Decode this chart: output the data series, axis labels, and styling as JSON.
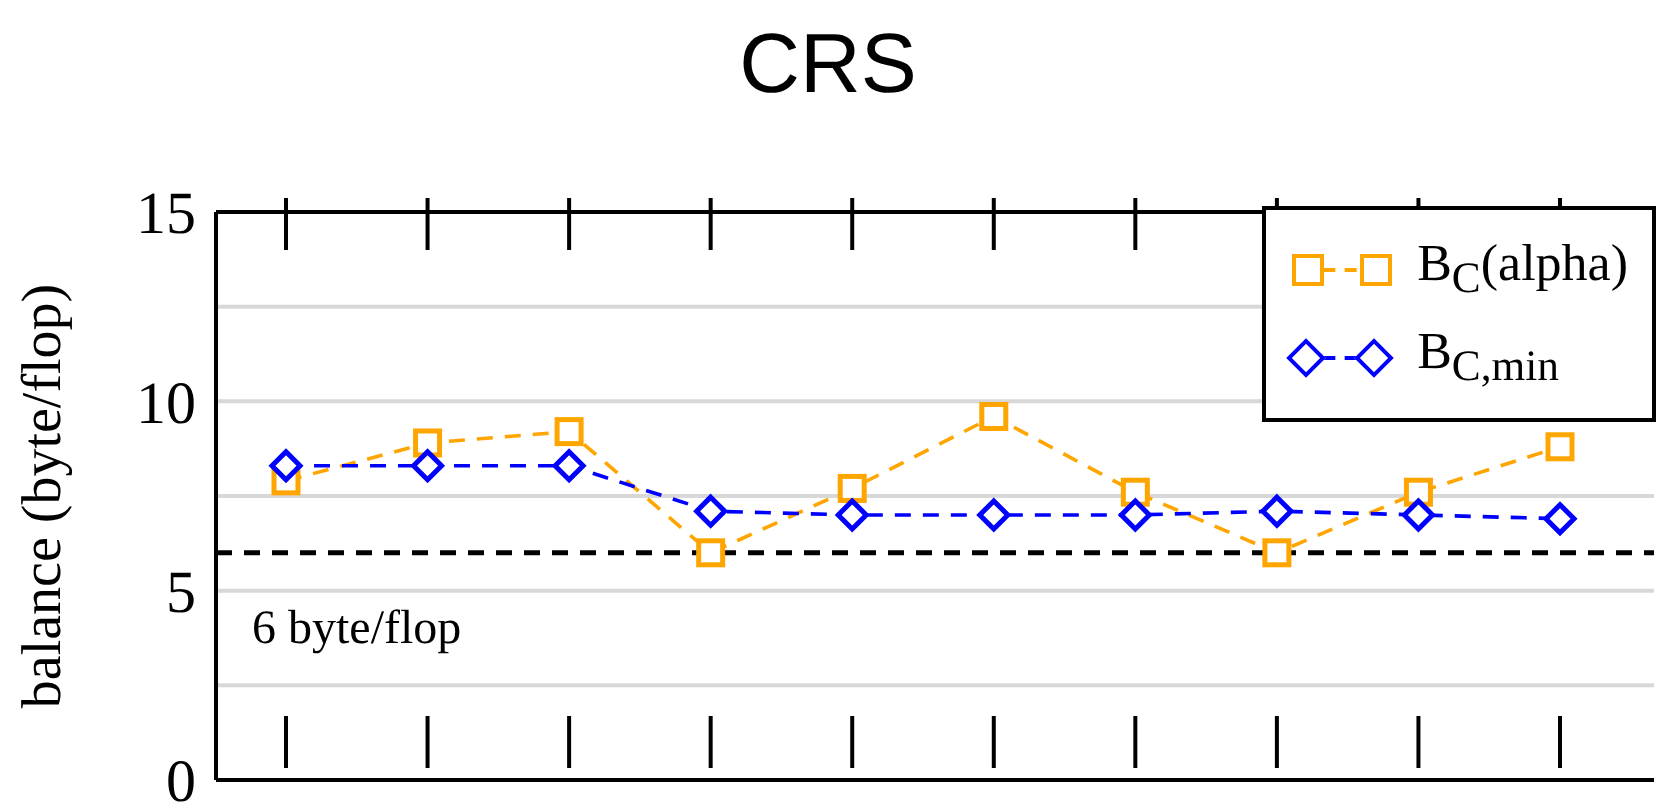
{
  "chart_data": {
    "type": "line",
    "title": "CRS",
    "ylabel": "balance (byte/flop)",
    "categories": [
      null,
      null,
      null,
      null,
      null,
      null,
      null,
      null,
      null,
      null
    ],
    "series": [
      {
        "name": "B$_{C}$(alpha)",
        "color": "#ffa500",
        "marker": "square",
        "values": [
          7.9,
          8.9,
          9.2,
          6.0,
          7.7,
          9.6,
          7.6,
          6.0,
          7.6,
          8.8
        ]
      },
      {
        "name": "B$_{C,min}$",
        "color": "#0000ff",
        "marker": "diamond",
        "values": [
          8.3,
          8.3,
          8.3,
          7.1,
          7.0,
          7.0,
          7.0,
          7.1,
          7.0,
          6.9
        ]
      }
    ],
    "line_style": "dashed",
    "ylim": [
      0,
      15
    ],
    "yticks": [
      0,
      {
        "value": 2.5,
        "label": null
      },
      5,
      {
        "value": 7.5,
        "label": null
      },
      10,
      {
        "value": 12.5,
        "label": null
      },
      15
    ],
    "grid": "y",
    "legend": "top right",
    "ref_lines": [
      {
        "axis": "y",
        "value": 6,
        "label": "6 byte/flop",
        "color": "#000000",
        "line_style": "dashed"
      }
    ]
  }
}
